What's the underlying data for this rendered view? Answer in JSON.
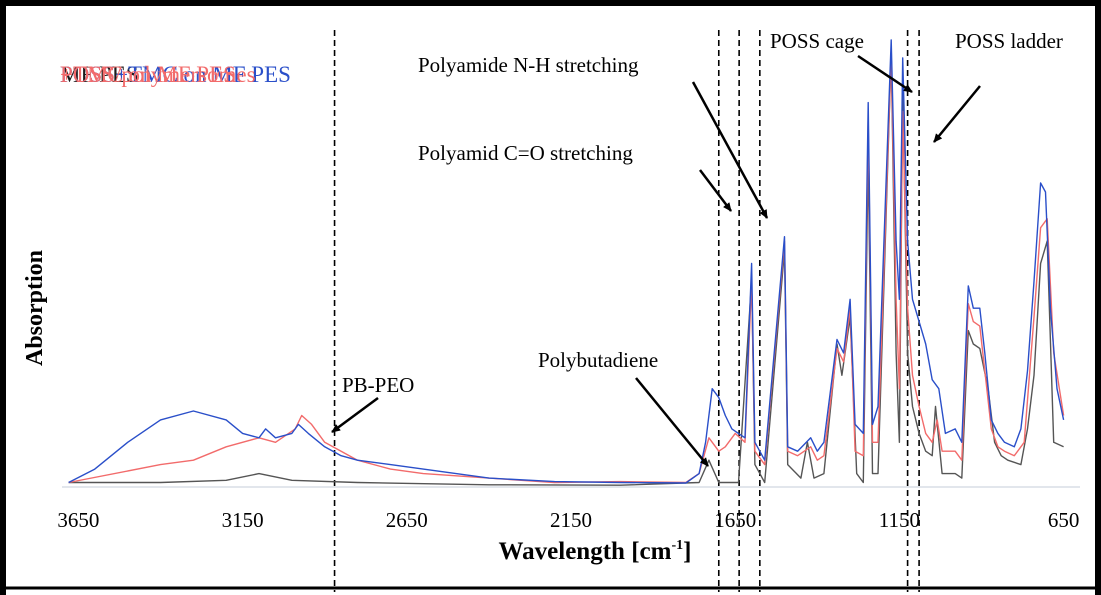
{
  "chart_data": {
    "type": "line",
    "xlabel": "Wavelength [cm",
    "xlabel_sup": "-1",
    "xlabel_end": "]",
    "ylabel": "Absorption",
    "x_reversed": true,
    "xlim": [
      3700,
      600
    ],
    "ylim": [
      0,
      1
    ],
    "x_ticks": [
      3650,
      3150,
      2650,
      2150,
      1650,
      1150,
      650
    ],
    "legend": {
      "placement": "top-left",
      "entries": [
        {
          "label": "MF PES",
          "color": "#1a1a1a"
        },
        {
          "label": "POSS+TMC on MF PES",
          "color": "#2a4fc9"
        },
        {
          "label": "POSS/polymersomes",
          "color": "#f26b6b"
        },
        {
          "label": "+TMC on MF PES",
          "color": "#f26b6b"
        }
      ]
    },
    "series": [
      {
        "color": "#555555",
        "points": [
          [
            3680,
            0.01
          ],
          [
            3400,
            0.01
          ],
          [
            3200,
            0.015
          ],
          [
            3100,
            0.03
          ],
          [
            3000,
            0.015
          ],
          [
            2800,
            0.01
          ],
          [
            2400,
            0.005
          ],
          [
            2000,
            0.004
          ],
          [
            1760,
            0.01
          ],
          [
            1730,
            0.06
          ],
          [
            1700,
            0.01
          ],
          [
            1640,
            0.01
          ],
          [
            1600,
            0.46
          ],
          [
            1590,
            0.05
          ],
          [
            1560,
            0.01
          ],
          [
            1500,
            0.53
          ],
          [
            1490,
            0.05
          ],
          [
            1450,
            0.02
          ],
          [
            1430,
            0.1
          ],
          [
            1410,
            0.02
          ],
          [
            1380,
            0.03
          ],
          [
            1340,
            0.32
          ],
          [
            1325,
            0.25
          ],
          [
            1300,
            0.38
          ],
          [
            1280,
            0.03
          ],
          [
            1260,
            0.01
          ],
          [
            1245,
            0.74
          ],
          [
            1232,
            0.03
          ],
          [
            1215,
            0.03
          ],
          [
            1175,
            0.97
          ],
          [
            1160,
            0.3
          ],
          [
            1150,
            0.1
          ],
          [
            1140,
            0.89
          ],
          [
            1125,
            0.3
          ],
          [
            1110,
            0.18
          ],
          [
            1090,
            0.12
          ],
          [
            1070,
            0.08
          ],
          [
            1050,
            0.07
          ],
          [
            1040,
            0.18
          ],
          [
            1020,
            0.03
          ],
          [
            980,
            0.03
          ],
          [
            960,
            0.02
          ],
          [
            940,
            0.35
          ],
          [
            925,
            0.32
          ],
          [
            905,
            0.31
          ],
          [
            880,
            0.22
          ],
          [
            860,
            0.1
          ],
          [
            840,
            0.07
          ],
          [
            820,
            0.06
          ],
          [
            780,
            0.05
          ],
          [
            760,
            0.13
          ],
          [
            740,
            0.25
          ],
          [
            720,
            0.5
          ],
          [
            700,
            0.55
          ],
          [
            680,
            0.1
          ],
          [
            650,
            0.09
          ]
        ]
      },
      {
        "color": "#f26b6b",
        "points": [
          [
            3680,
            0.01
          ],
          [
            3400,
            0.05
          ],
          [
            3300,
            0.06
          ],
          [
            3200,
            0.09
          ],
          [
            3100,
            0.11
          ],
          [
            3050,
            0.1
          ],
          [
            2990,
            0.13
          ],
          [
            2970,
            0.16
          ],
          [
            2940,
            0.14
          ],
          [
            2900,
            0.1
          ],
          [
            2800,
            0.06
          ],
          [
            2700,
            0.04
          ],
          [
            2600,
            0.03
          ],
          [
            2400,
            0.02
          ],
          [
            2200,
            0.01
          ],
          [
            2000,
            0.012
          ],
          [
            1800,
            0.01
          ],
          [
            1760,
            0.03
          ],
          [
            1730,
            0.11
          ],
          [
            1700,
            0.08
          ],
          [
            1680,
            0.09
          ],
          [
            1650,
            0.12
          ],
          [
            1620,
            0.1
          ],
          [
            1600,
            0.46
          ],
          [
            1590,
            0.08
          ],
          [
            1560,
            0.05
          ],
          [
            1500,
            0.55
          ],
          [
            1490,
            0.08
          ],
          [
            1460,
            0.07
          ],
          [
            1420,
            0.09
          ],
          [
            1400,
            0.06
          ],
          [
            1380,
            0.07
          ],
          [
            1340,
            0.31
          ],
          [
            1320,
            0.28
          ],
          [
            1300,
            0.4
          ],
          [
            1285,
            0.08
          ],
          [
            1260,
            0.07
          ],
          [
            1245,
            0.82
          ],
          [
            1232,
            0.1
          ],
          [
            1215,
            0.1
          ],
          [
            1175,
            0.97
          ],
          [
            1160,
            0.42
          ],
          [
            1150,
            0.22
          ],
          [
            1140,
            0.84
          ],
          [
            1125,
            0.4
          ],
          [
            1110,
            0.25
          ],
          [
            1090,
            0.18
          ],
          [
            1070,
            0.12
          ],
          [
            1050,
            0.1
          ],
          [
            1035,
            0.15
          ],
          [
            1020,
            0.08
          ],
          [
            980,
            0.08
          ],
          [
            960,
            0.06
          ],
          [
            940,
            0.41
          ],
          [
            925,
            0.37
          ],
          [
            905,
            0.36
          ],
          [
            890,
            0.26
          ],
          [
            870,
            0.13
          ],
          [
            850,
            0.09
          ],
          [
            830,
            0.08
          ],
          [
            800,
            0.07
          ],
          [
            770,
            0.1
          ],
          [
            740,
            0.38
          ],
          [
            720,
            0.58
          ],
          [
            700,
            0.6
          ],
          [
            680,
            0.3
          ],
          [
            650,
            0.16
          ]
        ]
      },
      {
        "color": "#2a4fc9",
        "points": [
          [
            3680,
            0.01
          ],
          [
            3600,
            0.04
          ],
          [
            3500,
            0.1
          ],
          [
            3400,
            0.15
          ],
          [
            3300,
            0.17
          ],
          [
            3200,
            0.15
          ],
          [
            3150,
            0.12
          ],
          [
            3100,
            0.11
          ],
          [
            3080,
            0.13
          ],
          [
            3050,
            0.11
          ],
          [
            3000,
            0.12
          ],
          [
            2980,
            0.14
          ],
          [
            2950,
            0.12
          ],
          [
            2900,
            0.09
          ],
          [
            2850,
            0.07
          ],
          [
            2800,
            0.06
          ],
          [
            2700,
            0.05
          ],
          [
            2600,
            0.04
          ],
          [
            2400,
            0.02
          ],
          [
            2200,
            0.012
          ],
          [
            2000,
            0.01
          ],
          [
            1800,
            0.009
          ],
          [
            1760,
            0.03
          ],
          [
            1740,
            0.1
          ],
          [
            1720,
            0.22
          ],
          [
            1700,
            0.2
          ],
          [
            1680,
            0.16
          ],
          [
            1660,
            0.13
          ],
          [
            1640,
            0.12
          ],
          [
            1620,
            0.11
          ],
          [
            1600,
            0.5
          ],
          [
            1590,
            0.1
          ],
          [
            1560,
            0.06
          ],
          [
            1500,
            0.56
          ],
          [
            1490,
            0.09
          ],
          [
            1460,
            0.08
          ],
          [
            1420,
            0.11
          ],
          [
            1400,
            0.08
          ],
          [
            1380,
            0.1
          ],
          [
            1340,
            0.33
          ],
          [
            1320,
            0.3
          ],
          [
            1300,
            0.42
          ],
          [
            1285,
            0.14
          ],
          [
            1260,
            0.12
          ],
          [
            1245,
            0.86
          ],
          [
            1232,
            0.14
          ],
          [
            1215,
            0.18
          ],
          [
            1175,
            1.0
          ],
          [
            1160,
            0.55
          ],
          [
            1150,
            0.42
          ],
          [
            1140,
            0.96
          ],
          [
            1125,
            0.55
          ],
          [
            1110,
            0.42
          ],
          [
            1090,
            0.37
          ],
          [
            1070,
            0.32
          ],
          [
            1050,
            0.24
          ],
          [
            1030,
            0.22
          ],
          [
            1010,
            0.12
          ],
          [
            980,
            0.13
          ],
          [
            960,
            0.1
          ],
          [
            940,
            0.45
          ],
          [
            925,
            0.4
          ],
          [
            905,
            0.4
          ],
          [
            890,
            0.3
          ],
          [
            870,
            0.15
          ],
          [
            850,
            0.12
          ],
          [
            830,
            0.1
          ],
          [
            800,
            0.09
          ],
          [
            780,
            0.13
          ],
          [
            760,
            0.26
          ],
          [
            740,
            0.46
          ],
          [
            720,
            0.68
          ],
          [
            705,
            0.66
          ],
          [
            690,
            0.4
          ],
          [
            670,
            0.22
          ],
          [
            650,
            0.15
          ]
        ]
      }
    ],
    "vlines": [
      2870,
      1700,
      1638,
      1575,
      1125,
      1090
    ],
    "annotations": [
      {
        "text": "PB-PEO",
        "x": 2800
      },
      {
        "text": "Polybutadiene",
        "x": 1900
      },
      {
        "text": "Polyamid C=O stretching",
        "x": 2150
      },
      {
        "text": "Polyamide N-H stretching",
        "x": 2150
      },
      {
        "text": "POSS cage",
        "x": 1450
      },
      {
        "text": "POSS ladder",
        "x": 850
      }
    ]
  }
}
